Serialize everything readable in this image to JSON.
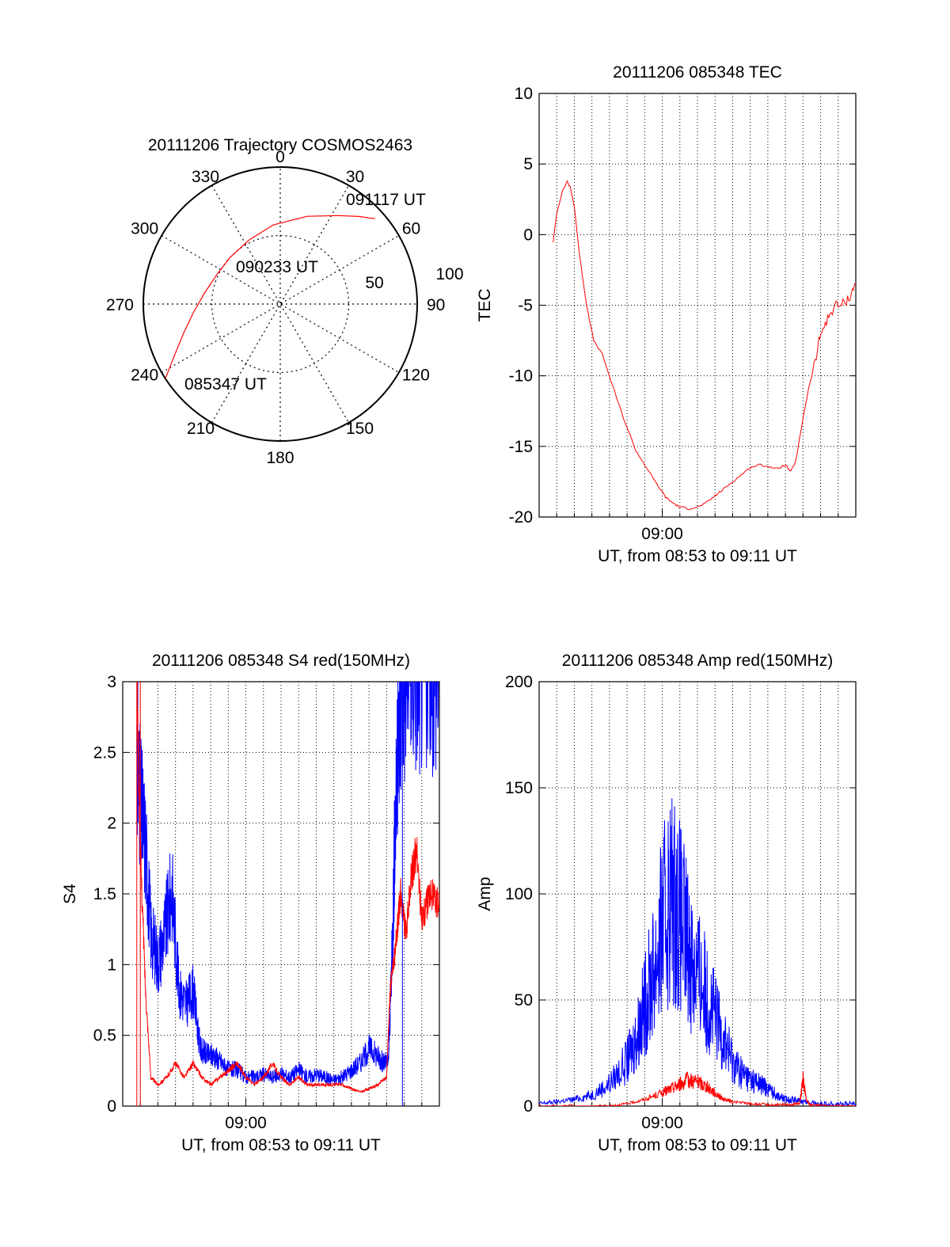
{
  "colors": {
    "red": "#ff0000",
    "blue": "#0000ff",
    "axis": "#000000",
    "grid": "#000000",
    "background": "#ffffff"
  },
  "chart_data": [
    {
      "id": "trajectory",
      "type": "polar",
      "title": "20111206 Trajectory COSMOS2463",
      "azimuth_labels": [
        "0",
        "30",
        "60",
        "90",
        "120",
        "150",
        "180",
        "210",
        "240",
        "270",
        "300",
        "330"
      ],
      "radius_labels": [
        "50",
        "100"
      ],
      "grid": true,
      "annotations": [
        "091117 UT",
        "090233 UT",
        "085347 UT"
      ],
      "series": [
        {
          "color": "#ff0000",
          "points": [
            [
              237,
              100
            ],
            [
              244,
              86
            ],
            [
              253,
              74
            ],
            [
              264,
              64
            ],
            [
              278,
              56
            ],
            [
              295,
              51
            ],
            [
              313,
              50
            ],
            [
              334,
              52
            ],
            [
              355,
              58
            ],
            [
              17,
              67
            ],
            [
              33,
              77
            ],
            [
              42,
              86
            ],
            [
              48,
              93
            ]
          ]
        }
      ]
    },
    {
      "id": "tec",
      "type": "line",
      "title": "20111206 085348 TEC",
      "ylabel": "TEC",
      "xlabel": "UT, from 08:53 to 09:11 UT",
      "x_tick_label": "09:00",
      "ylim": [
        -20,
        10
      ],
      "yticks": [
        "10",
        "5",
        "0",
        "-5",
        "-10",
        "-15",
        "-20"
      ],
      "grid": true,
      "series": [
        {
          "color": "#ff0000",
          "x": [
            0.8,
            1.0,
            1.3,
            1.6,
            1.8,
            2.0,
            2.3,
            2.7,
            3.1,
            3.6,
            4.2,
            4.8,
            5.5,
            6.0,
            6.6,
            7.2,
            7.6,
            8.0,
            8.5,
            9.0,
            9.5,
            10.0,
            10.5,
            11.0,
            11.5,
            12.0,
            12.5,
            13.0,
            13.5,
            14.0,
            14.3,
            14.6,
            15.0,
            15.3,
            15.7,
            16.0,
            16.4,
            16.8,
            17.2,
            17.6,
            18.0
          ],
          "y": [
            -0.5,
            1.5,
            3.0,
            3.8,
            3.2,
            2.0,
            -1.5,
            -5.0,
            -7.5,
            -8.5,
            -10.8,
            -13.0,
            -15.3,
            -16.3,
            -17.5,
            -18.6,
            -19.0,
            -19.3,
            -19.4,
            -19.3,
            -19.0,
            -18.5,
            -18.0,
            -17.5,
            -17.0,
            -16.5,
            -16.3,
            -16.4,
            -16.6,
            -16.3,
            -16.8,
            -16.0,
            -13.0,
            -11.0,
            -9.0,
            -7.0,
            -6.0,
            -5.0,
            -5.0,
            -4.5,
            -3.5
          ]
        }
      ]
    },
    {
      "id": "s4",
      "type": "line",
      "title": "20111206 085348 S4 red(150MHz)",
      "ylabel": "S4",
      "xlabel": "UT, from 08:53 to 09:11 UT",
      "x_tick_label": "09:00",
      "ylim": [
        0,
        3
      ],
      "yticks": [
        "3",
        "2.5",
        "2",
        "1.5",
        "1",
        "0.5",
        "0"
      ],
      "grid": true,
      "series": [
        {
          "color": "#0000ff",
          "x": [
            0.8,
            1.0,
            1.3,
            1.6,
            2.0,
            2.4,
            2.8,
            3.2,
            3.6,
            4.0,
            4.4,
            4.8,
            5.2,
            5.6,
            6.0,
            6.5,
            7.0,
            7.5,
            8.0,
            8.5,
            9.0,
            9.5,
            10.0,
            10.5,
            11.0,
            11.5,
            12.0,
            12.5,
            13.0,
            13.5,
            14.0,
            14.5,
            14.8,
            15.1,
            15.3,
            15.5,
            15.8,
            16.2,
            16.6,
            17.0,
            17.5,
            18.0
          ],
          "y": [
            2.5,
            2.1,
            1.8,
            1.2,
            1.0,
            1.2,
            1.5,
            0.8,
            0.7,
            0.8,
            0.4,
            0.35,
            0.35,
            0.3,
            0.25,
            0.25,
            0.2,
            0.2,
            0.22,
            0.2,
            0.22,
            0.2,
            0.25,
            0.2,
            0.22,
            0.2,
            0.18,
            0.2,
            0.25,
            0.3,
            0.4,
            0.35,
            0.3,
            0.3,
            1.0,
            2.0,
            2.8,
            3.0,
            3.0,
            3.0,
            3.0,
            3.0
          ]
        },
        {
          "color": "#ff0000",
          "x": [
            0.8,
            1.0,
            1.3,
            1.6,
            2.0,
            2.5,
            3.0,
            3.5,
            4.0,
            4.5,
            5.0,
            5.5,
            6.0,
            6.5,
            7.0,
            7.5,
            8.0,
            8.5,
            9.0,
            9.5,
            10.0,
            10.5,
            11.0,
            11.5,
            12.0,
            12.5,
            13.0,
            13.5,
            14.0,
            14.5,
            15.0,
            15.2,
            15.5,
            15.8,
            16.1,
            16.4,
            16.7,
            17.0,
            17.5,
            18.0
          ],
          "y": [
            3.0,
            1.8,
            0.8,
            0.2,
            0.15,
            0.2,
            0.3,
            0.2,
            0.3,
            0.2,
            0.15,
            0.2,
            0.25,
            0.3,
            0.2,
            0.15,
            0.2,
            0.3,
            0.2,
            0.15,
            0.2,
            0.15,
            0.15,
            0.15,
            0.15,
            0.15,
            0.12,
            0.1,
            0.12,
            0.15,
            0.2,
            0.8,
            1.1,
            1.5,
            1.2,
            1.6,
            1.8,
            1.3,
            1.5,
            1.4
          ]
        }
      ]
    },
    {
      "id": "amp",
      "type": "line",
      "title": "20111206 085348 Amp red(150MHz)",
      "ylabel": "Amp",
      "xlabel": "UT, from 08:53 to 09:11 UT",
      "x_tick_label": "09:00",
      "ylim": [
        0,
        200
      ],
      "yticks": [
        "200",
        "150",
        "100",
        "50",
        "0"
      ],
      "grid": true,
      "series": [
        {
          "color": "#0000ff",
          "x": [
            0.0,
            1.0,
            2.0,
            3.0,
            4.0,
            5.0,
            5.5,
            6.0,
            6.5,
            7.0,
            7.5,
            8.0,
            8.5,
            9.0,
            9.5,
            10.0,
            10.5,
            11.0,
            11.5,
            12.0,
            12.5,
            13.0,
            13.5,
            14.0,
            14.5,
            15.0,
            16.0,
            17.0,
            18.0
          ],
          "y": [
            1,
            2,
            3,
            5,
            10,
            20,
            30,
            45,
            60,
            80,
            95,
            85,
            70,
            60,
            50,
            40,
            30,
            20,
            15,
            12,
            10,
            8,
            5,
            3,
            3,
            2,
            1,
            1,
            1
          ]
        },
        {
          "color": "#ff0000",
          "x": [
            0.0,
            4.0,
            5.0,
            6.0,
            7.0,
            7.5,
            8.0,
            8.5,
            9.0,
            9.5,
            10.0,
            10.5,
            11.0,
            12.0,
            13.0,
            14.0,
            14.8,
            15.0,
            15.2,
            15.4,
            16.0,
            18.0
          ],
          "y": [
            0,
            0,
            1,
            3,
            6,
            8,
            10,
            12,
            11,
            9,
            6,
            3,
            2,
            1,
            0.5,
            0.5,
            1,
            12,
            3,
            0.5,
            0,
            0
          ]
        }
      ]
    }
  ]
}
